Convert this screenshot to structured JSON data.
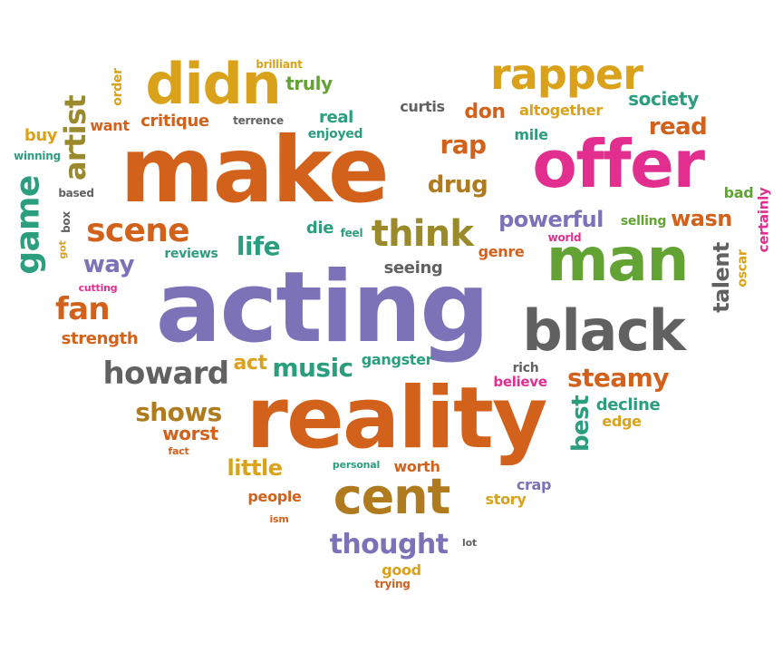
{
  "palette": {
    "orange": "#d2621b",
    "mustard": "#d9a21a",
    "purple": "#7c72b8",
    "green": "#63a334",
    "pink": "#e22e8e",
    "gray": "#616161",
    "teal": "#2a9e7e",
    "brown": "#b07b1e",
    "olive": "#9a8a2c"
  },
  "words": [
    {
      "text": "acting",
      "color": "purple"
    },
    {
      "text": "make",
      "color": "orange"
    },
    {
      "text": "reality",
      "color": "orange"
    },
    {
      "text": "offer",
      "color": "pink"
    },
    {
      "text": "man",
      "color": "green"
    },
    {
      "text": "black",
      "color": "gray"
    },
    {
      "text": "didn",
      "color": "mustard"
    },
    {
      "text": "rapper",
      "color": "mustard"
    },
    {
      "text": "cent",
      "color": "brown"
    },
    {
      "text": "think",
      "color": "olive"
    },
    {
      "text": "howard",
      "color": "gray"
    },
    {
      "text": "scene",
      "color": "orange"
    },
    {
      "text": "steamy",
      "color": "orange"
    },
    {
      "text": "thought",
      "color": "purple"
    },
    {
      "text": "music",
      "color": "teal"
    },
    {
      "text": "shows",
      "color": "brown"
    },
    {
      "text": "powerful",
      "color": "purple"
    },
    {
      "text": "fan",
      "color": "orange"
    },
    {
      "text": "game",
      "color": "teal"
    },
    {
      "text": "artist",
      "color": "olive"
    },
    {
      "text": "life",
      "color": "teal"
    },
    {
      "text": "way",
      "color": "purple"
    },
    {
      "text": "drug",
      "color": "brown"
    },
    {
      "text": "rap",
      "color": "orange"
    },
    {
      "text": "read",
      "color": "orange"
    },
    {
      "text": "don",
      "color": "orange"
    },
    {
      "text": "wasn",
      "color": "orange"
    },
    {
      "text": "talent",
      "color": "gray"
    },
    {
      "text": "best",
      "color": "teal"
    },
    {
      "text": "little",
      "color": "mustard"
    },
    {
      "text": "worst",
      "color": "orange"
    },
    {
      "text": "strength",
      "color": "orange"
    },
    {
      "text": "critique",
      "color": "orange"
    },
    {
      "text": "society",
      "color": "teal"
    },
    {
      "text": "truly",
      "color": "green"
    },
    {
      "text": "real",
      "color": "teal"
    },
    {
      "text": "seeing",
      "color": "gray"
    },
    {
      "text": "act",
      "color": "mustard"
    },
    {
      "text": "gangster",
      "color": "teal"
    },
    {
      "text": "decline",
      "color": "teal"
    },
    {
      "text": "edge",
      "color": "mustard"
    },
    {
      "text": "curtis",
      "color": "gray"
    },
    {
      "text": "altogether",
      "color": "mustard"
    },
    {
      "text": "mile",
      "color": "teal"
    },
    {
      "text": "bad",
      "color": "green"
    },
    {
      "text": "certainly",
      "color": "pink"
    },
    {
      "text": "selling",
      "color": "green"
    },
    {
      "text": "oscar",
      "color": "mustard"
    },
    {
      "text": "world",
      "color": "pink"
    },
    {
      "text": "genre",
      "color": "orange"
    },
    {
      "text": "die",
      "color": "teal"
    },
    {
      "text": "feel",
      "color": "teal"
    },
    {
      "text": "reviews",
      "color": "teal"
    },
    {
      "text": "want",
      "color": "orange"
    },
    {
      "text": "buy",
      "color": "mustard"
    },
    {
      "text": "winning",
      "color": "teal"
    },
    {
      "text": "based",
      "color": "gray"
    },
    {
      "text": "box",
      "color": "gray"
    },
    {
      "text": "got",
      "color": "mustard"
    },
    {
      "text": "cutting",
      "color": "pink"
    },
    {
      "text": "order",
      "color": "mustard"
    },
    {
      "text": "brilliant",
      "color": "mustard"
    },
    {
      "text": "terrence",
      "color": "gray"
    },
    {
      "text": "enjoyed",
      "color": "teal"
    },
    {
      "text": "rich",
      "color": "gray"
    },
    {
      "text": "believe",
      "color": "pink"
    },
    {
      "text": "fact",
      "color": "orange"
    },
    {
      "text": "personal",
      "color": "teal"
    },
    {
      "text": "worth",
      "color": "orange"
    },
    {
      "text": "people",
      "color": "orange"
    },
    {
      "text": "story",
      "color": "mustard"
    },
    {
      "text": "crap",
      "color": "purple"
    },
    {
      "text": "ism",
      "color": "orange"
    },
    {
      "text": "lot",
      "color": "gray"
    },
    {
      "text": "good",
      "color": "mustard"
    },
    {
      "text": "trying",
      "color": "orange"
    }
  ]
}
